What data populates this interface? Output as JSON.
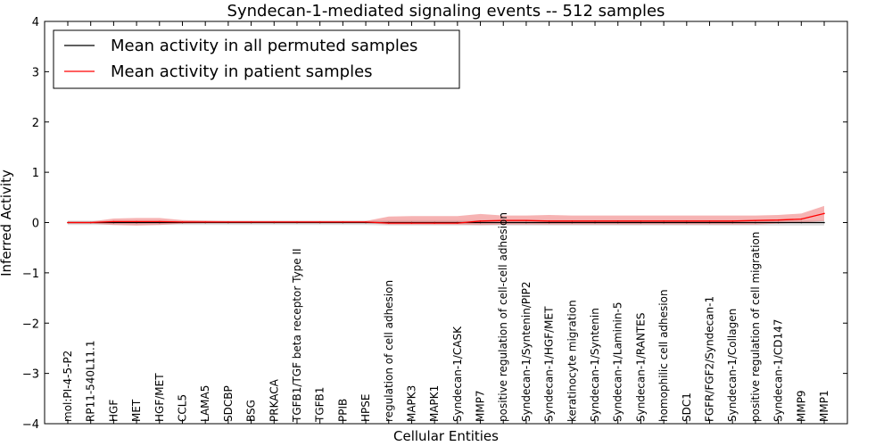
{
  "chart_data": {
    "type": "line",
    "title": "Syndecan-1-mediated signaling events -- 512 samples",
    "xlabel": "Cellular Entities",
    "ylabel": "Inferred Activity",
    "ylim": [
      -4,
      4
    ],
    "yticks": [
      -4,
      -3,
      -2,
      -1,
      0,
      1,
      2,
      3,
      4
    ],
    "ytick_labels": [
      "−4",
      "−3",
      "−2",
      "−1",
      "0",
      "1",
      "2",
      "3",
      "4"
    ],
    "grid": false,
    "legend_position": "top-left",
    "categories": [
      "mol:PI-4-5-P2",
      "RP11-540L11.1",
      "HGF",
      "MET",
      "HGF/MET",
      "CCL5",
      "LAMA5",
      "SDCBP",
      "BSG",
      "PRKACA",
      "TGFB1/TGF beta receptor Type II",
      "TGFB1",
      "PPIB",
      "HPSE",
      "regulation of cell adhesion",
      "MAPK3",
      "MAPK1",
      "Syndecan-1/CASK",
      "MMP7",
      "positive regulation of cell-cell adhesion",
      "Syndecan-1/Syntenin/PIP2",
      "Syndecan-1/HGF/MET",
      "keratinocyte migration",
      "Syndecan-1/Syntenin",
      "Syndecan-1/Laminin-5",
      "Syndecan-1/RANTES",
      "homophilic cell adhesion",
      "SDC1",
      "FGFR/FGF2/Syndecan-1",
      "Syndecan-1/Collagen",
      "positive regulation of cell migration",
      "Syndecan-1/CD147",
      "MMP9",
      "MMP1"
    ],
    "series": [
      {
        "name": "Mean activity in all permuted samples",
        "color": "#000000",
        "values": [
          0,
          0,
          0,
          0,
          0,
          0,
          0,
          0,
          0,
          0,
          0,
          0,
          0,
          0,
          0,
          0,
          0,
          0,
          0,
          0,
          0,
          0,
          0,
          0,
          0,
          0,
          0,
          0,
          0,
          0,
          0,
          0,
          0,
          0
        ],
        "band_lower": [
          -0.05,
          -0.05,
          -0.05,
          -0.05,
          -0.05,
          -0.05,
          -0.05,
          -0.05,
          -0.05,
          -0.05,
          -0.05,
          -0.05,
          -0.05,
          -0.05,
          -0.06,
          -0.06,
          -0.06,
          -0.06,
          -0.06,
          -0.06,
          -0.06,
          -0.06,
          -0.06,
          -0.06,
          -0.06,
          -0.06,
          -0.06,
          -0.06,
          -0.06,
          -0.06,
          -0.06,
          -0.06,
          -0.06,
          -0.06
        ],
        "band_upper": [
          0.04,
          0.04,
          0.04,
          0.04,
          0.04,
          0.04,
          0.04,
          0.04,
          0.04,
          0.04,
          0.04,
          0.04,
          0.04,
          0.04,
          0.05,
          0.05,
          0.05,
          0.05,
          0.05,
          0.05,
          0.05,
          0.05,
          0.05,
          0.05,
          0.05,
          0.05,
          0.05,
          0.05,
          0.05,
          0.05,
          0.05,
          0.05,
          0.05,
          0.05
        ],
        "band_color": "#c8c8c8"
      },
      {
        "name": "Mean activity in patient samples",
        "color": "#ff0000",
        "values": [
          0.0,
          0.0,
          0.02,
          0.02,
          0.02,
          0.01,
          0.01,
          0.01,
          0.01,
          0.01,
          0.01,
          0.01,
          0.01,
          0.01,
          -0.01,
          -0.01,
          -0.01,
          -0.01,
          0.03,
          0.04,
          0.04,
          0.03,
          0.03,
          0.03,
          0.03,
          0.03,
          0.03,
          0.03,
          0.03,
          0.03,
          0.04,
          0.05,
          0.07,
          0.18
        ],
        "band_lower": [
          -0.02,
          -0.02,
          -0.05,
          -0.06,
          -0.05,
          -0.02,
          -0.01,
          -0.01,
          -0.01,
          -0.01,
          -0.01,
          -0.01,
          -0.01,
          -0.01,
          -0.04,
          -0.04,
          -0.04,
          -0.04,
          -0.05,
          -0.04,
          -0.04,
          -0.04,
          -0.04,
          -0.04,
          -0.04,
          -0.04,
          -0.04,
          -0.04,
          -0.04,
          -0.04,
          -0.04,
          -0.02,
          0.0,
          0.03
        ],
        "band_upper": [
          0.02,
          0.02,
          0.08,
          0.09,
          0.09,
          0.05,
          0.04,
          0.03,
          0.03,
          0.03,
          0.03,
          0.03,
          0.03,
          0.03,
          0.12,
          0.13,
          0.13,
          0.13,
          0.17,
          0.14,
          0.14,
          0.15,
          0.14,
          0.14,
          0.14,
          0.14,
          0.14,
          0.14,
          0.14,
          0.14,
          0.14,
          0.15,
          0.18,
          0.33
        ],
        "band_color": "#f08080"
      }
    ]
  }
}
